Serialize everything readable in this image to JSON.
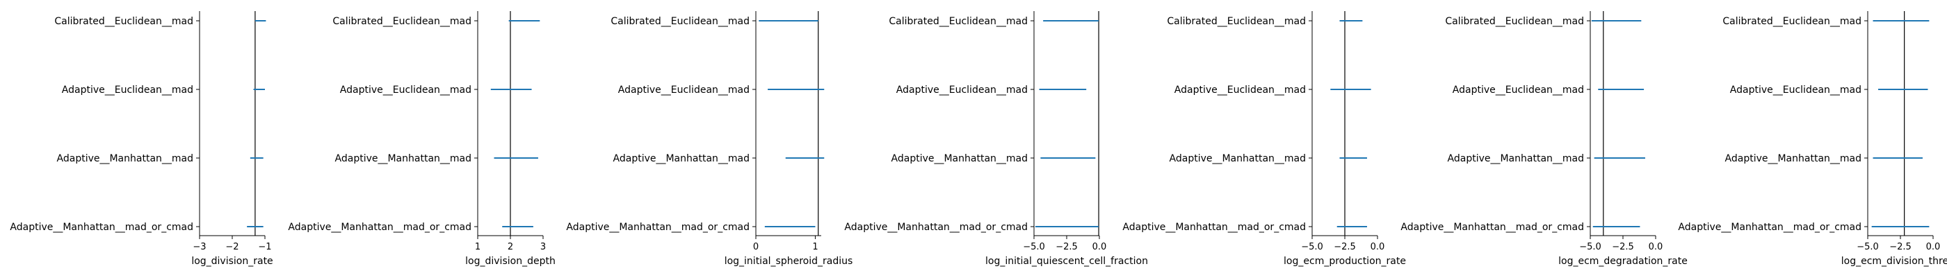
{
  "chart_data": [
    {
      "type": "interval",
      "categories": [
        "Calibrated__Euclidean__mad",
        "Adaptive__Euclidean__mad",
        "Adaptive__Manhattan__mad",
        "Adaptive__Manhattan__mad_or_cmad"
      ],
      "intervals": [
        [
          -1.3,
          -0.97
        ],
        [
          -1.35,
          -1.0
        ],
        [
          -1.45,
          -1.05
        ],
        [
          -1.55,
          -1.05
        ]
      ],
      "reference_line": -1.3,
      "xlabel": "log_division_rate",
      "xlim": [
        -3,
        -1
      ],
      "xticks": [
        -3,
        -2,
        -1
      ],
      "xtick_labels": [
        "−3",
        "−2",
        "−1"
      ]
    },
    {
      "type": "interval",
      "categories": [
        "Calibrated__Euclidean__mad",
        "Adaptive__Euclidean__mad",
        "Adaptive__Manhattan__mad",
        "Adaptive__Manhattan__mad_or_cmad"
      ],
      "intervals": [
        [
          1.95,
          2.9
        ],
        [
          1.4,
          2.65
        ],
        [
          1.5,
          2.85
        ],
        [
          1.75,
          2.7
        ]
      ],
      "reference_line": 2.0,
      "xlabel": "log_division_depth",
      "xlim": [
        1,
        3
      ],
      "xticks": [
        1,
        2,
        3
      ],
      "xtick_labels": [
        "1",
        "2",
        "3"
      ]
    },
    {
      "type": "interval",
      "categories": [
        "Calibrated__Euclidean__mad",
        "Adaptive__Euclidean__mad",
        "Adaptive__Manhattan__mad",
        "Adaptive__Manhattan__mad_or_cmad"
      ],
      "intervals": [
        [
          0.05,
          1.05
        ],
        [
          0.2,
          1.15
        ],
        [
          0.5,
          1.15
        ],
        [
          0.15,
          1.0
        ]
      ],
      "reference_line": 1.05,
      "xlabel": "log_initial_spheroid_radius",
      "xlim": [
        0,
        1.1
      ],
      "xticks": [
        0,
        1
      ],
      "xtick_labels": [
        "0",
        "1"
      ]
    },
    {
      "type": "interval",
      "categories": [
        "Calibrated__Euclidean__mad",
        "Adaptive__Euclidean__mad",
        "Adaptive__Manhattan__mad",
        "Adaptive__Manhattan__mad_or_cmad"
      ],
      "intervals": [
        [
          -4.3,
          -0.05
        ],
        [
          -4.6,
          -1.0
        ],
        [
          -4.5,
          -0.3
        ],
        [
          -4.9,
          -0.05
        ]
      ],
      "reference_line": -0.05,
      "xlabel": "log_initial_quiescent_cell_fraction",
      "xlim": [
        -5,
        0
      ],
      "xticks": [
        -5,
        -2.5,
        0
      ],
      "xtick_labels": [
        "−5.0",
        "−2.5",
        "0.0"
      ]
    },
    {
      "type": "interval",
      "categories": [
        "Calibrated__Euclidean__mad",
        "Adaptive__Euclidean__mad",
        "Adaptive__Manhattan__mad",
        "Adaptive__Manhattan__mad_or_cmad"
      ],
      "intervals": [
        [
          -2.9,
          -1.15
        ],
        [
          -3.6,
          -0.5
        ],
        [
          -2.9,
          -0.8
        ],
        [
          -3.1,
          -0.8
        ]
      ],
      "reference_line": -2.5,
      "xlabel": "log_ecm_production_rate",
      "xlim": [
        -5,
        0
      ],
      "xticks": [
        -5,
        -2.5,
        0
      ],
      "xtick_labels": [
        "−5.0",
        "−2.5",
        "0.0"
      ]
    },
    {
      "type": "interval",
      "categories": [
        "Calibrated__Euclidean__mad",
        "Adaptive__Euclidean__mad",
        "Adaptive__Manhattan__mad",
        "Adaptive__Manhattan__mad_or_cmad"
      ],
      "intervals": [
        [
          -4.9,
          -1.1
        ],
        [
          -4.4,
          -0.9
        ],
        [
          -4.7,
          -0.8
        ],
        [
          -4.8,
          -1.2
        ]
      ],
      "reference_line": -4.0,
      "xlabel": "log_ecm_degradation_rate",
      "xlim": [
        -5,
        0
      ],
      "xticks": [
        -5,
        -2.5,
        0
      ],
      "xtick_labels": [
        "−5.0",
        "−2.5",
        "0.0"
      ]
    },
    {
      "type": "interval",
      "categories": [
        "Calibrated__Euclidean__mad",
        "Adaptive__Euclidean__mad",
        "Adaptive__Manhattan__mad",
        "Adaptive__Manhattan__mad_or_cmad"
      ],
      "intervals": [
        [
          -4.6,
          -0.3
        ],
        [
          -4.2,
          -0.4
        ],
        [
          -4.6,
          -0.8
        ],
        [
          -4.7,
          -0.3
        ]
      ],
      "reference_line": -2.2,
      "xlabel": "log_ecm_division_thresh",
      "xlim": [
        -5,
        0
      ],
      "xticks": [
        -5,
        -2.5,
        0
      ],
      "xtick_labels": [
        "−5.0",
        "−2.5",
        "0.0"
      ]
    }
  ],
  "colors": {
    "interval": "#1f77b4",
    "reference_line": "#000000",
    "axis": "#000000"
  }
}
